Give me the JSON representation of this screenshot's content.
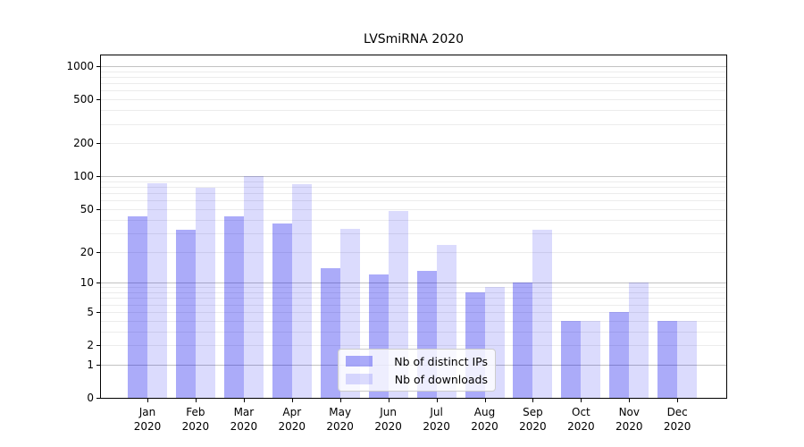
{
  "chart_data": {
    "type": "bar",
    "title": "LVSmiRNA 2020",
    "categories": [
      "Jan",
      "Feb",
      "Mar",
      "Apr",
      "May",
      "Jun",
      "Jul",
      "Aug",
      "Sep",
      "Oct",
      "Nov",
      "Dec"
    ],
    "category_year": "2020",
    "series": [
      {
        "name": "Nb of distinct IPs",
        "color": "#aaaaf6",
        "rgba": "rgba(0,0,238,0.33)",
        "values": [
          43,
          32,
          43,
          37,
          14,
          12,
          13,
          8,
          10,
          4,
          5,
          4
        ]
      },
      {
        "name": "Nb of downloads",
        "color": "#dcdcfa",
        "rgba": "rgba(0,0,238,0.14)",
        "values": [
          86,
          78,
          101,
          85,
          33,
          48,
          23,
          9,
          32,
          4,
          10,
          4
        ]
      }
    ],
    "yscale": "log1p",
    "yticks": [
      0,
      1,
      2,
      5,
      10,
      20,
      50,
      100,
      200,
      500,
      1000
    ],
    "ylim": [
      0,
      1000
    ],
    "grid": {
      "orientation": "horizontal",
      "major_ticks": [
        1,
        10,
        100,
        1000
      ],
      "major_color": "#c2c2c2",
      "minor_color": "#ececec"
    },
    "legend_position": "inside-bottom-center",
    "axis_color": "#000000",
    "background_color": "#ffffff"
  }
}
